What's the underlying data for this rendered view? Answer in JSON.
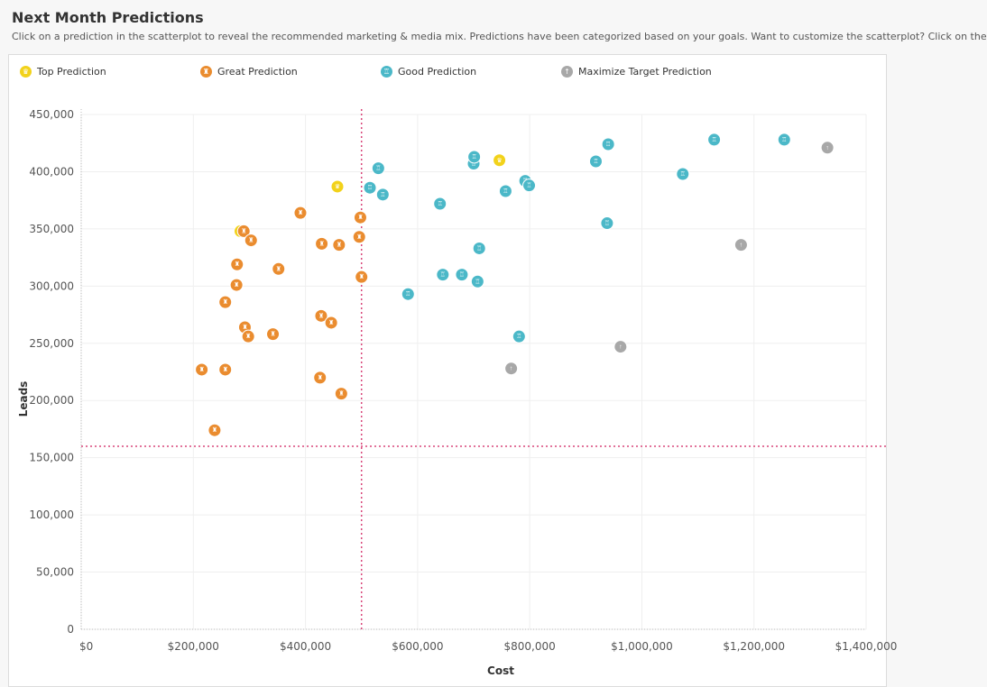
{
  "header": {
    "title": "Next Month Predictions",
    "subtitle": "Click on a prediction in the scatterplot to reveal the recommended marketing & media mix. Predictions have been categorized based on your goals. Want to customize the scatterplot? Click on the"
  },
  "legend": [
    {
      "label": "Top Prediction",
      "color": "#f2d21a",
      "icon": "trophy-icon",
      "glyph": "♛"
    },
    {
      "label": "Great Prediction",
      "color": "#ea8c2f",
      "icon": "medal-icon",
      "glyph": "♜"
    },
    {
      "label": "Good Prediction",
      "color": "#4bb8c8",
      "icon": "thumb-icon",
      "glyph": "♖"
    },
    {
      "label": "Maximize Target Prediction",
      "color": "#a8a8a8",
      "icon": "arrow-up-icon",
      "glyph": "↑"
    }
  ],
  "chart_data": {
    "type": "scatter",
    "xlabel": "Cost",
    "ylabel": "Leads",
    "xlim": [
      0,
      1400000
    ],
    "ylim": [
      0,
      450000
    ],
    "x_ticks": [
      0,
      200000,
      400000,
      600000,
      800000,
      1000000,
      1200000,
      1400000
    ],
    "x_tick_labels": [
      "$0",
      "$200,000",
      "$400,000",
      "$600,000",
      "$800,000",
      "$1,000,000",
      "$1,200,000",
      "$1,400,000"
    ],
    "y_ticks": [
      0,
      50000,
      100000,
      150000,
      200000,
      250000,
      300000,
      350000,
      400000,
      450000
    ],
    "y_tick_labels": [
      "0",
      "50,000",
      "100,000",
      "150,000",
      "200,000",
      "250,000",
      "300,000",
      "350,000",
      "400,000",
      "450,000"
    ],
    "reference_lines": {
      "x": 500000,
      "y": 160000,
      "color": "#d9467a"
    },
    "grid": true,
    "legend_position": "top",
    "series": [
      {
        "name": "Top Prediction",
        "color": "#f2d21a",
        "points": [
          [
            284000,
            348000
          ],
          [
            457000,
            387000
          ],
          [
            746000,
            410000
          ]
        ]
      },
      {
        "name": "Great Prediction",
        "color": "#ea8c2f",
        "points": [
          [
            215000,
            227000
          ],
          [
            238000,
            174000
          ],
          [
            257000,
            227000
          ],
          [
            257000,
            286000
          ],
          [
            277000,
            301000
          ],
          [
            278000,
            319000
          ],
          [
            290000,
            348000
          ],
          [
            292000,
            264000
          ],
          [
            298000,
            256000
          ],
          [
            303000,
            340000
          ],
          [
            342000,
            258000
          ],
          [
            352000,
            315000
          ],
          [
            391000,
            364000
          ],
          [
            426000,
            220000
          ],
          [
            428000,
            274000
          ],
          [
            429000,
            337000
          ],
          [
            446000,
            268000
          ],
          [
            460000,
            336000
          ],
          [
            464000,
            206000
          ],
          [
            496000,
            343000
          ],
          [
            498000,
            360000
          ],
          [
            500000,
            308000
          ]
        ]
      },
      {
        "name": "Good Prediction",
        "color": "#4bb8c8",
        "points": [
          [
            515000,
            386000
          ],
          [
            530000,
            403000
          ],
          [
            538000,
            380000
          ],
          [
            583000,
            293000
          ],
          [
            640000,
            372000
          ],
          [
            645000,
            310000
          ],
          [
            679000,
            310000
          ],
          [
            700000,
            407000
          ],
          [
            701000,
            413000
          ],
          [
            707000,
            304000
          ],
          [
            710000,
            333000
          ],
          [
            757000,
            383000
          ],
          [
            781000,
            256000
          ],
          [
            792000,
            392000
          ],
          [
            799000,
            388000
          ],
          [
            918000,
            409000
          ],
          [
            938000,
            355000
          ],
          [
            940000,
            424000
          ],
          [
            1073000,
            398000
          ],
          [
            1129000,
            428000
          ],
          [
            1254000,
            428000
          ]
        ]
      },
      {
        "name": "Maximize Target Prediction",
        "color": "#a8a8a8",
        "points": [
          [
            767000,
            228000
          ],
          [
            962000,
            247000
          ],
          [
            1177000,
            336000
          ],
          [
            1331000,
            421000
          ]
        ]
      }
    ]
  }
}
